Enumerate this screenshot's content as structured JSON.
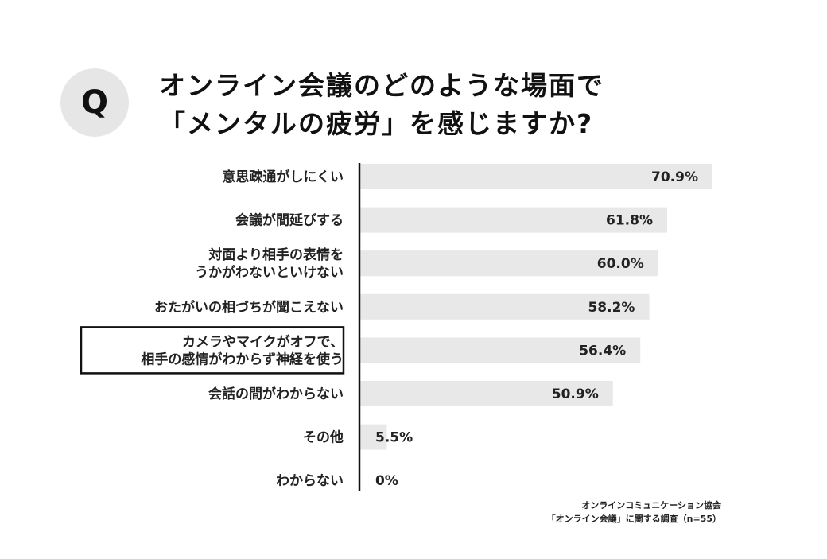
{
  "badge": "Q",
  "title_lines": [
    "オンライン会議のどのような場面で",
    "「メンタルの疲労」を感じますか?"
  ],
  "source_lines": [
    "オンラインコミュニケーション協会",
    "「オンライン会議」に関する調査（n=55）"
  ],
  "colors": {
    "bar": "#e8e8e8",
    "axis": "#111111",
    "highlight_border": "#111111",
    "badge_bg": "#e6e6e6"
  },
  "chart_data": {
    "type": "bar",
    "orientation": "horizontal",
    "categories": [
      [
        "意思疎通がしにくい"
      ],
      [
        "会議が間延びする"
      ],
      [
        "対面より相手の表情を",
        "うかがわないといけない"
      ],
      [
        "おたがいの相づちが聞こえない"
      ],
      [
        "カメラやマイクがオフで、",
        "相手の感情がわからず神経を使う"
      ],
      [
        "会話の間がわからない"
      ],
      [
        "その他"
      ],
      [
        "わからない"
      ]
    ],
    "values": [
      70.9,
      61.8,
      60.0,
      58.2,
      56.4,
      50.9,
      5.5,
      0
    ],
    "value_labels": [
      "70.9%",
      "61.8%",
      "60.0%",
      "58.2%",
      "56.4%",
      "50.9%",
      "5.5%",
      "0%"
    ],
    "highlighted_index": 4,
    "xlim": [
      0,
      70.9
    ],
    "grid": false,
    "legend": "none"
  }
}
